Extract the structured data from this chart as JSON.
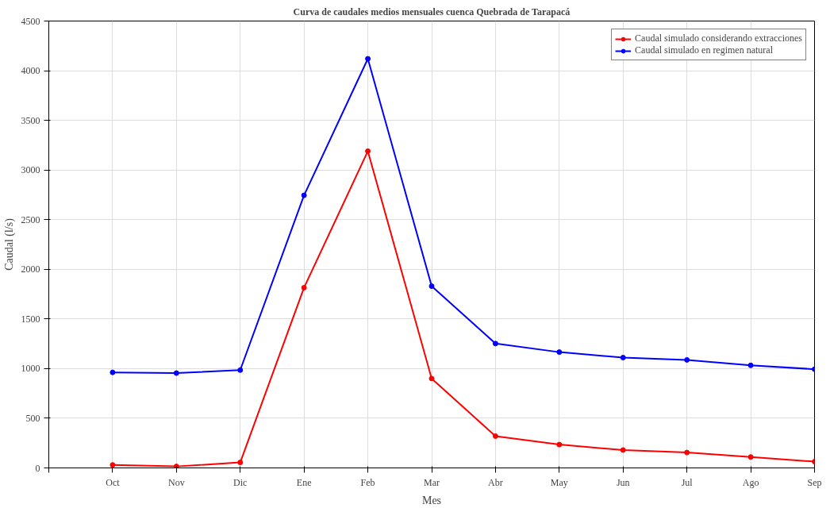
{
  "chart_data": {
    "type": "line",
    "title": "Curva de caudales medios mensuales cuenca Quebrada de Tarapacá",
    "xlabel": "Mes",
    "ylabel": "Caudal (l/s)",
    "categories": [
      null,
      "Oct",
      "Nov",
      "Dic",
      "Ene",
      "Feb",
      "Mar",
      "Abr",
      "May",
      "Jun",
      "Jul",
      "Ago",
      "Sep"
    ],
    "series": [
      {
        "name": "Caudal simulado considerando extracciones",
        "color": "#ff0000",
        "values": [
          null,
          30,
          15,
          55,
          1815,
          3190,
          900,
          320,
          235,
          180,
          155,
          110,
          63
        ]
      },
      {
        "name": "Caudal simulado en regimen natural",
        "color": "#0000ff",
        "values": [
          null,
          962,
          955,
          985,
          2745,
          4120,
          1830,
          1252,
          1166,
          1111,
          1088,
          1033,
          994
        ]
      }
    ],
    "ylim": [
      0,
      4500
    ],
    "yticks": [
      0,
      500,
      1000,
      1500,
      2000,
      2500,
      3000,
      3500,
      4000,
      4500
    ],
    "grid": true,
    "legend": "top right",
    "marker": "circle",
    "line_style": "solid"
  }
}
